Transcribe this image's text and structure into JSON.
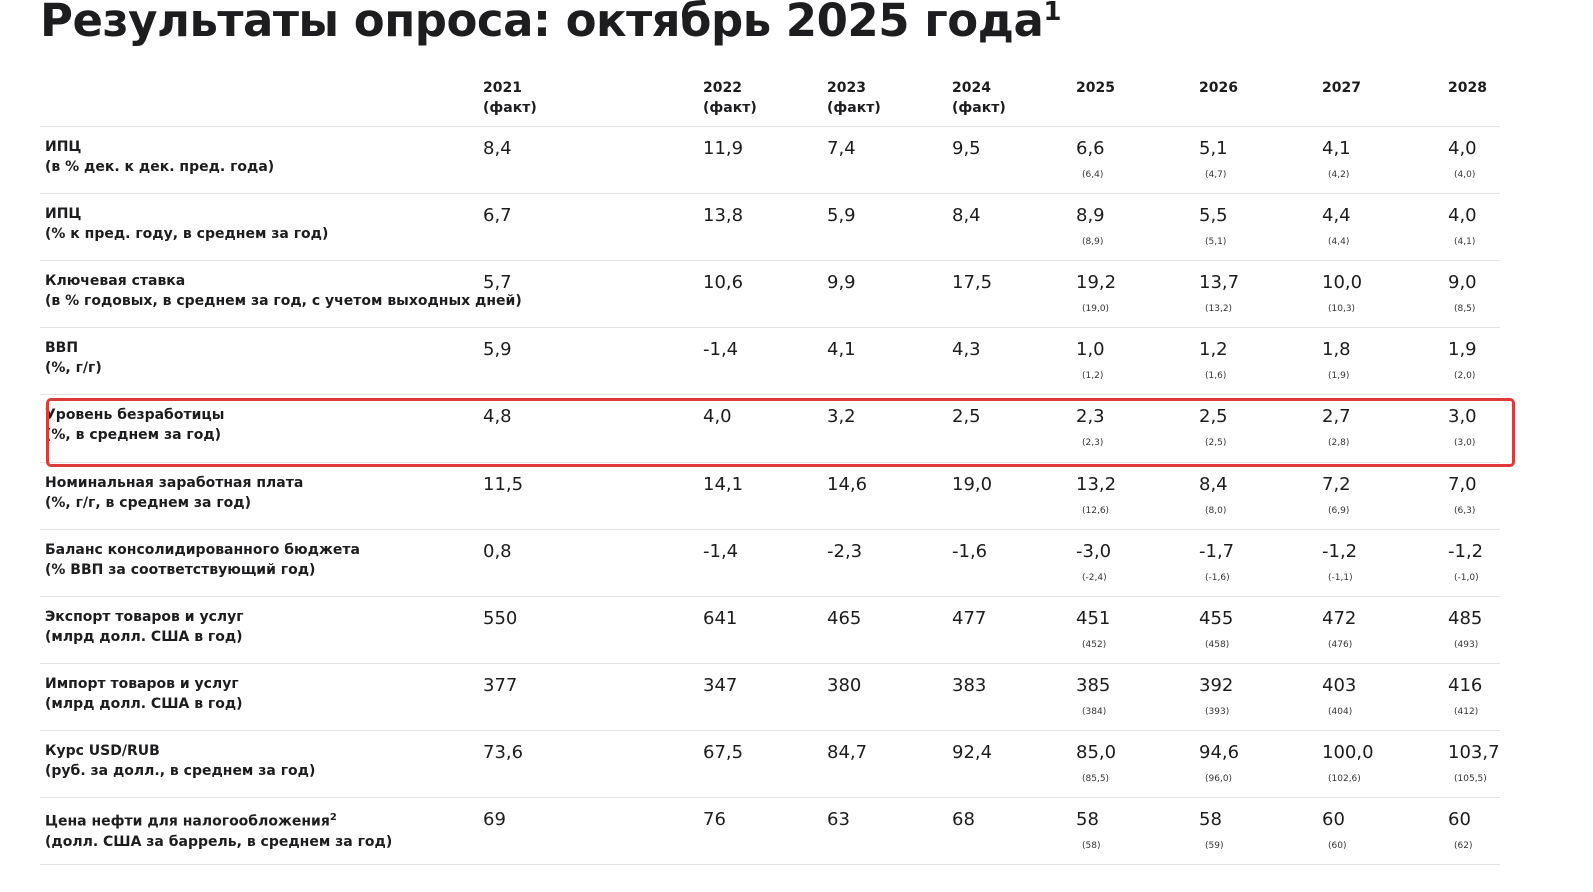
{
  "title": {
    "text": "Результаты опроса: октябрь 2025 года",
    "note": "1"
  },
  "table": {
    "columns": [
      {
        "year": "2021",
        "note": "(факт)"
      },
      {
        "year": "2022",
        "note": "(факт)"
      },
      {
        "year": "2023",
        "note": "(факт)"
      },
      {
        "year": "2024",
        "note": "(факт)"
      },
      {
        "year": "2025"
      },
      {
        "year": "2026"
      },
      {
        "year": "2027"
      },
      {
        "year": "2028"
      }
    ],
    "rows": [
      {
        "label": "ИПЦ",
        "unit": "(в % дек. к дек. пред. года)",
        "values": [
          "8,4",
          "11,9",
          "7,4",
          "9,5",
          "6,6",
          "5,1",
          "4,1",
          "4,0"
        ],
        "previous": [
          "(6,4)",
          "(4,7)",
          "(4,2)",
          "(4,0)"
        ]
      },
      {
        "label": "ИПЦ",
        "unit": "(% к пред. году, в среднем за год)",
        "values": [
          "6,7",
          "13,8",
          "5,9",
          "8,4",
          "8,9",
          "5,5",
          "4,4",
          "4,0"
        ],
        "previous": [
          "(8,9)",
          "(5,1)",
          "(4,4)",
          "(4,1)"
        ]
      },
      {
        "label": "Ключевая ставка",
        "unit": "(в % годовых, в среднем за год, с учетом выходных дней)",
        "values": [
          "5,7",
          "10,6",
          "9,9",
          "17,5",
          "19,2",
          "13,7",
          "10,0",
          "9,0"
        ],
        "previous": [
          "(19,0)",
          "(13,2)",
          "(10,3)",
          "(8,5)"
        ]
      },
      {
        "label": "ВВП",
        "unit": "(%, г/г)",
        "values": [
          "5,9",
          "-1,4",
          "4,1",
          "4,3",
          "1,0",
          "1,2",
          "1,8",
          "1,9"
        ],
        "previous": [
          "(1,2)",
          "(1,6)",
          "(1,9)",
          "(2,0)"
        ]
      },
      {
        "label": "Уровень безработицы",
        "unit": "(%, в среднем за год)",
        "values": [
          "4,8",
          "4,0",
          "3,2",
          "2,5",
          "2,3",
          "2,5",
          "2,7",
          "3,0"
        ],
        "previous": [
          "(2,3)",
          "(2,5)",
          "(2,8)",
          "(3,0)"
        ]
      },
      {
        "label": "Номинальная заработная плата",
        "unit": "(%, г/г, в среднем за год)",
        "values": [
          "11,5",
          "14,1",
          "14,6",
          "19,0",
          "13,2",
          "8,4",
          "7,2",
          "7,0"
        ],
        "previous": [
          "(12,6)",
          "(8,0)",
          "(6,9)",
          "(6,3)"
        ]
      },
      {
        "label": "Баланс консолидированного бюджета",
        "unit": "(% ВВП за соответствующий год)",
        "values": [
          "0,8",
          "-1,4",
          "-2,3",
          "-1,6",
          "-3,0",
          "-1,7",
          "-1,2",
          "-1,2"
        ],
        "previous": [
          "(-2,4)",
          "(-1,6)",
          "(-1,1)",
          "(-1,0)"
        ]
      },
      {
        "label": "Экспорт товаров и услуг",
        "unit": "(млрд долл. США в год)",
        "values": [
          "550",
          "641",
          "465",
          "477",
          "451",
          "455",
          "472",
          "485"
        ],
        "previous": [
          "(452)",
          "(458)",
          "(476)",
          "(493)"
        ]
      },
      {
        "label": "Импорт товаров и услуг",
        "unit": "(млрд долл. США в год)",
        "values": [
          "377",
          "347",
          "380",
          "383",
          "385",
          "392",
          "403",
          "416"
        ],
        "previous": [
          "(384)",
          "(393)",
          "(404)",
          "(412)"
        ]
      },
      {
        "label": "Курс USD/RUB",
        "unit": "(руб. за долл., в среднем за год)",
        "values": [
          "73,6",
          "67,5",
          "84,7",
          "92,4",
          "85,0",
          "94,6",
          "100,0",
          "103,7"
        ],
        "previous": [
          "(85,5)",
          "(96,0)",
          "(102,6)",
          "(105,5)"
        ]
      },
      {
        "label": "Цена нефти для налогообложения",
        "label_note": "2",
        "unit": "(долл. США за баррель, в среднем за год)",
        "values": [
          "69",
          "76",
          "63",
          "68",
          "58",
          "58",
          "60",
          "60"
        ],
        "previous": [
          "(58)",
          "(59)",
          "(60)",
          "(62)"
        ]
      }
    ]
  }
}
